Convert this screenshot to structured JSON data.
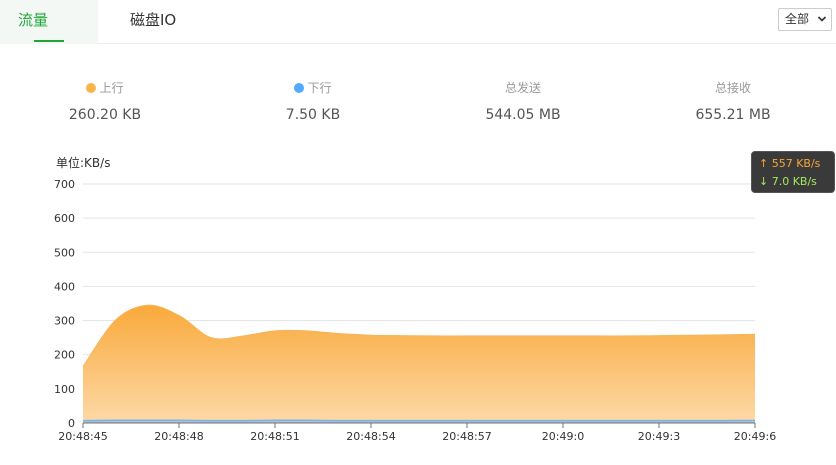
{
  "tabs": [
    {
      "label": "流量"
    },
    {
      "label": "磁盘IO"
    }
  ],
  "range_select": {
    "value": "全部"
  },
  "stats": {
    "up": {
      "label": "上行",
      "value": "260.20 KB",
      "color": "#f8b448"
    },
    "down": {
      "label": "下行",
      "value": "7.50 KB",
      "color": "#52a9ff"
    },
    "total_sent": {
      "label": "总发送",
      "value": "544.05 MB"
    },
    "total_recv": {
      "label": "总接收",
      "value": "655.21 MB"
    }
  },
  "tooltip": {
    "up": "↑ 557 KB/s",
    "down": "↓ 7.0 KB/s"
  },
  "chart_data": {
    "type": "area",
    "ylabel": "单位:KB/s",
    "ylim": [
      0,
      700
    ],
    "yticks": [
      "0",
      "100",
      "200",
      "300",
      "400",
      "500",
      "600",
      "700"
    ],
    "xticks": [
      "20:48:45",
      "20:48:48",
      "20:48:51",
      "20:48:54",
      "20:48:57",
      "20:49:0",
      "20:49:3",
      "20:49:6"
    ],
    "grid": true,
    "series": [
      {
        "name": "上行",
        "color": "#f8a535",
        "x": [
          0,
          1,
          2,
          3,
          4,
          5,
          6,
          7,
          8,
          9,
          10,
          11,
          12,
          13,
          14,
          15,
          16,
          17,
          18,
          19,
          20,
          21
        ],
        "values": [
          165,
          300,
          345,
          315,
          250,
          255,
          270,
          270,
          262,
          257,
          256,
          255,
          255,
          255,
          255,
          255,
          255,
          255,
          256,
          257,
          258,
          260
        ]
      },
      {
        "name": "下行",
        "color": "#52a9ff",
        "x": [
          0,
          1,
          2,
          3,
          4,
          5,
          6,
          7,
          8,
          9,
          10,
          11,
          12,
          13,
          14,
          15,
          16,
          17,
          18,
          19,
          20,
          21
        ],
        "values": [
          7,
          8,
          8,
          8,
          7,
          7,
          8,
          8,
          7,
          7,
          7,
          7,
          7,
          7,
          7,
          7,
          7,
          7,
          7,
          7,
          7,
          7.5
        ]
      }
    ]
  }
}
